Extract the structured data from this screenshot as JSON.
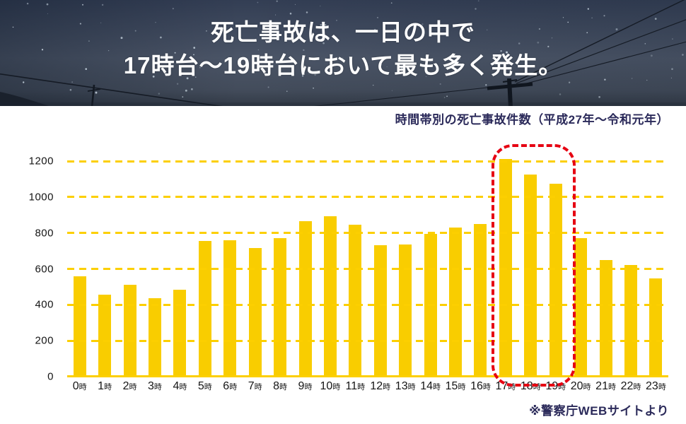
{
  "header": {
    "title_line1": "死亡事故は、一日の中で",
    "title_line2": "17時台〜19時台において最も多く発生。"
  },
  "chart": {
    "subtitle": "時間帯別の死亡事故件数（平成27年〜令和元年）",
    "source_note": "※警察庁WEBサイトより"
  },
  "chart_data": {
    "type": "bar",
    "title": "時間帯別の死亡事故件数（平成27年〜令和元年）",
    "categories": [
      "0時",
      "1時",
      "2時",
      "3時",
      "4時",
      "5時",
      "6時",
      "7時",
      "8時",
      "9時",
      "10時",
      "11時",
      "12時",
      "13時",
      "14時",
      "15時",
      "16時",
      "17時",
      "18時",
      "19時",
      "20時",
      "21時",
      "22時",
      "23時"
    ],
    "values": [
      560,
      455,
      510,
      435,
      485,
      755,
      760,
      715,
      770,
      865,
      895,
      845,
      730,
      735,
      795,
      830,
      850,
      1210,
      1125,
      1075,
      770,
      650,
      620,
      545
    ],
    "xlabel": "",
    "ylabel": "",
    "ylim": [
      0,
      1200
    ],
    "yticks": [
      0,
      200,
      400,
      600,
      800,
      1000,
      1200
    ],
    "grid": "horizontal-dashed",
    "legend": "none",
    "bar_color": "#f9cd00",
    "gridline_color": "#fccf00",
    "highlight": {
      "from_index": 17,
      "to_index": 19,
      "color": "#e60012"
    }
  },
  "colors": {
    "accent_yellow": "#f9cd00",
    "highlight_red": "#e60012",
    "navy_text": "#2b2a5a",
    "axis_text": "#151515",
    "sky_top": "#333e54",
    "sky_mid": "#4b5567",
    "sky_bottom": "#323a46"
  }
}
